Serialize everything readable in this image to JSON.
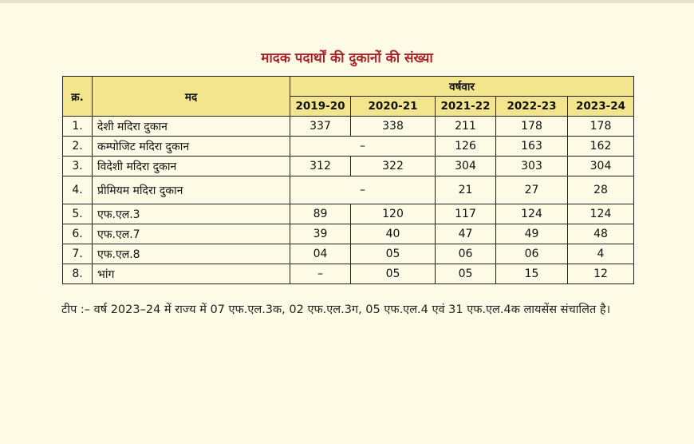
{
  "title": "मादक पदार्थों की दुकानों की संख्या",
  "table": {
    "header_sno": "क्र.",
    "header_item": "मद",
    "header_yearwise": "वर्षवार",
    "years": [
      "2019-20",
      "2020-21",
      "2021-22",
      "2022-23",
      "2023-24"
    ],
    "rows": [
      {
        "sno": "1.",
        "item": "देशी मदिरा दुकान",
        "v1": "337",
        "v2": "338",
        "v3": "211",
        "v4": "178",
        "v5": "178"
      },
      {
        "sno": "2.",
        "item": "कम्पोजिट मदिरा दुकान",
        "merged": "–",
        "v3": "126",
        "v4": "163",
        "v5": "162"
      },
      {
        "sno": "3.",
        "item": "विदेशी मदिरा दुकान",
        "v1": "312",
        "v2": "322",
        "v3": "304",
        "v4": "303",
        "v5": "304"
      },
      {
        "sno": "4.",
        "item": "प्रीमियम मदिरा दुकान",
        "merged": "–",
        "v3": "21",
        "v4": "27",
        "v5": "28"
      },
      {
        "sno": "5.",
        "item": "एफ.एल.3",
        "v1": "89",
        "v2": "120",
        "v3": "117",
        "v4": "124",
        "v5": "124"
      },
      {
        "sno": "6.",
        "item": "एफ.एल.7",
        "v1": "39",
        "v2": "40",
        "v3": "47",
        "v4": "49",
        "v5": "48"
      },
      {
        "sno": "7.",
        "item": "एफ.एल.8",
        "v1": "04",
        "v2": "05",
        "v3": "06",
        "v4": "06",
        "v5": "4"
      },
      {
        "sno": "8.",
        "item": "भांग",
        "v1": "–",
        "v2": "05",
        "v3": "05",
        "v4": "15",
        "v5": "12"
      }
    ]
  },
  "note": "टीप :– वर्ष 2023–24 में राज्य में 07 एफ.एल.3क, 02 एफ.एल.3ग, 05 एफ.एल.4 एवं 31 एफ.एल.4क लायसेंस संचालित है।"
}
